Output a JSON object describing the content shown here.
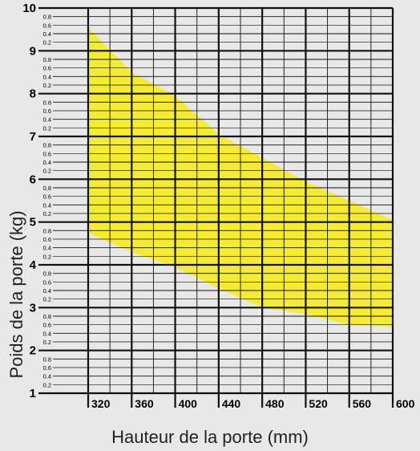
{
  "chart_data": {
    "type": "area",
    "xlabel": "Hauteur de la porte (mm)",
    "ylabel": "Poids de la porte (kg)",
    "xlim": [
      320,
      600
    ],
    "ylim": [
      1,
      10
    ],
    "x_ticks": [
      "320",
      "360",
      "400",
      "440",
      "480",
      "520",
      "560",
      "600"
    ],
    "y_major_ticks": [
      "1",
      "2",
      "3",
      "4",
      "5",
      "6",
      "7",
      "8",
      "9",
      "10"
    ],
    "y_minor_tick_labels": [
      "0.2",
      "0.4",
      "0.6",
      "0.8"
    ],
    "band": {
      "x": [
        320,
        360,
        400,
        440,
        480,
        520,
        560,
        600
      ],
      "upper": [
        9.55,
        8.5,
        7.95,
        7.05,
        6.5,
        5.95,
        5.5,
        5.05
      ],
      "lower": [
        4.75,
        4.3,
        3.95,
        3.45,
        3.0,
        2.85,
        2.6,
        2.55
      ]
    },
    "colors": {
      "band": "#f5ec2f",
      "grid": "#111111",
      "background": "#e8e8e8"
    },
    "grid": true
  }
}
